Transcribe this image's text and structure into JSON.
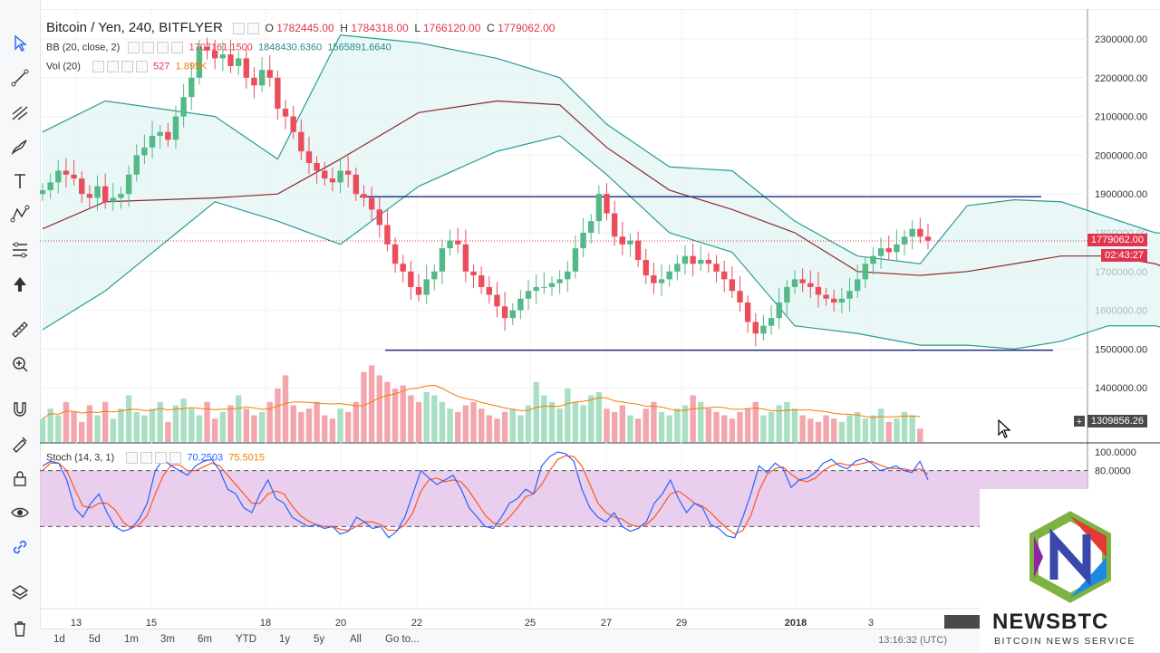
{
  "header": {
    "title": "Bitcoin / Yen, 240, BITFLYER",
    "ohlc": {
      "o_label": "O",
      "o": "1782445.00",
      "h_label": "H",
      "h": "1784318.00",
      "l_label": "L",
      "l": "1766120.00",
      "c_label": "C",
      "c": "1779062.00"
    },
    "bb_label": "BB (20, close, 2)",
    "bb_values": [
      "1707161.1500",
      "1848430.6360",
      "1565891.6640"
    ],
    "vol_label": "Vol (20)",
    "vol_values": [
      "527",
      "1.895K"
    ],
    "stoch_label": "Stoch (14, 3, 1)",
    "stoch_values": [
      "70.2503",
      "75.5015"
    ]
  },
  "price_tags": {
    "last": "1779062.00",
    "countdown": "02:43:27",
    "crosshair": "1309856.26"
  },
  "toolbar": {
    "icons": [
      "cursor-icon",
      "trendline-icon",
      "pitchfork-icon",
      "brush-icon",
      "text-icon",
      "pattern-icon",
      "fib-icon",
      "arrow-icon",
      "ruler-icon",
      "zoom-icon",
      "magnet-icon",
      "lock-icon",
      "hidden-lock-icon",
      "eye-icon",
      "link-icon",
      "layers-icon",
      "trash-icon"
    ]
  },
  "ranges": [
    "1d",
    "5d",
    "1m",
    "3m",
    "6m",
    "YTD",
    "1y",
    "5y",
    "All",
    "Go to..."
  ],
  "utc_time": "13:16:32 (UTC)",
  "logo": {
    "word": "NEWSBTC",
    "sub": "BITCOIN NEWS SERVICE"
  },
  "colors": {
    "up": "#53b987",
    "down": "#eb4d5c",
    "bb_band": "#2a9d8f",
    "bb_mid": "#8b2a2a",
    "hline": "#1a237e",
    "stoch_k": "#2962ff",
    "stoch_d": "#ff5722",
    "stoch_fill": "#e1bee7"
  },
  "chart_data": {
    "type": "candlestick",
    "title": "Bitcoin / Yen, 240, BITFLYER",
    "y_ticks": [
      "2300000.00",
      "2200000.00",
      "2100000.00",
      "2000000.00",
      "1900000.00",
      "1800000.00",
      "1700000.00",
      "1600000.00",
      "1500000.00",
      "1400000.00"
    ],
    "ylim": [
      1300000,
      2330000
    ],
    "x_ticks": [
      "13",
      "15",
      "18",
      "20",
      "22",
      "25",
      "27",
      "29",
      "2018",
      "3"
    ],
    "x_tick_label_partial": "2018-",
    "horizontal_lines": [
      1893000,
      1497000
    ],
    "bb_upper": [
      [
        0,
        2060000
      ],
      [
        8,
        2140000
      ],
      [
        22,
        2100000
      ],
      [
        30,
        1990000
      ],
      [
        38,
        2310000
      ],
      [
        48,
        2290000
      ],
      [
        58,
        2250000
      ],
      [
        66,
        2200000
      ],
      [
        72,
        2080000
      ],
      [
        80,
        1970000
      ],
      [
        88,
        1960000
      ],
      [
        96,
        1830000
      ],
      [
        104,
        1740000
      ],
      [
        112,
        1720000
      ],
      [
        118,
        1870000
      ],
      [
        124,
        1885000
      ],
      [
        130,
        1880000
      ],
      [
        136,
        1840000
      ],
      [
        142,
        1800000
      ],
      [
        150,
        1790000
      ],
      [
        158,
        1770000
      ],
      [
        166,
        1790000
      ],
      [
        172,
        1820000
      ],
      [
        180,
        1790000
      ],
      [
        186,
        1760000
      ],
      [
        192,
        1800000
      ],
      [
        196,
        1850000
      ]
    ],
    "bb_middle": [
      [
        0,
        1810000
      ],
      [
        8,
        1880000
      ],
      [
        22,
        1890000
      ],
      [
        30,
        1900000
      ],
      [
        38,
        1990000
      ],
      [
        48,
        2110000
      ],
      [
        58,
        2140000
      ],
      [
        66,
        2130000
      ],
      [
        72,
        2020000
      ],
      [
        80,
        1910000
      ],
      [
        88,
        1860000
      ],
      [
        96,
        1800000
      ],
      [
        104,
        1700000
      ],
      [
        112,
        1690000
      ],
      [
        118,
        1700000
      ],
      [
        124,
        1720000
      ],
      [
        130,
        1740000
      ],
      [
        136,
        1740000
      ],
      [
        142,
        1720000
      ],
      [
        150,
        1660000
      ],
      [
        158,
        1640000
      ],
      [
        166,
        1650000
      ],
      [
        172,
        1640000
      ],
      [
        180,
        1620000
      ],
      [
        186,
        1640000
      ],
      [
        192,
        1690000
      ],
      [
        196,
        1710000
      ]
    ],
    "bb_lower": [
      [
        0,
        1550000
      ],
      [
        8,
        1650000
      ],
      [
        22,
        1880000
      ],
      [
        30,
        1830000
      ],
      [
        38,
        1770000
      ],
      [
        48,
        1920000
      ],
      [
        58,
        2010000
      ],
      [
        66,
        2050000
      ],
      [
        72,
        1950000
      ],
      [
        80,
        1800000
      ],
      [
        88,
        1750000
      ],
      [
        96,
        1560000
      ],
      [
        104,
        1540000
      ],
      [
        112,
        1510000
      ],
      [
        118,
        1510000
      ],
      [
        124,
        1500000
      ],
      [
        130,
        1520000
      ],
      [
        136,
        1560000
      ],
      [
        142,
        1560000
      ],
      [
        150,
        1520000
      ],
      [
        158,
        1500000
      ],
      [
        166,
        1500000
      ],
      [
        172,
        1510000
      ],
      [
        180,
        1500000
      ],
      [
        186,
        1540000
      ],
      [
        192,
        1560000
      ],
      [
        196,
        1565000
      ]
    ],
    "candle_series": [
      1910000,
      1930000,
      1960000,
      1950000,
      1940000,
      1900000,
      1890000,
      1920000,
      1880000,
      1890000,
      1900000,
      1950000,
      2000000,
      2020000,
      2050000,
      2060000,
      2040000,
      2100000,
      2150000,
      2200000,
      2280000,
      2270000,
      2250000,
      2260000,
      2230000,
      2250000,
      2200000,
      2180000,
      2220000,
      2200000,
      2120000,
      2100000,
      2060000,
      2010000,
      1980000,
      1960000,
      1940000,
      1930000,
      1960000,
      1950000,
      1900000,
      1890000,
      1860000,
      1820000,
      1770000,
      1720000,
      1700000,
      1660000,
      1640000,
      1680000,
      1700000,
      1760000,
      1780000,
      1770000,
      1700000,
      1690000,
      1660000,
      1640000,
      1610000,
      1580000,
      1600000,
      1630000,
      1650000,
      1660000,
      1660000,
      1670000,
      1680000,
      1700000,
      1760000,
      1800000,
      1830000,
      1900000,
      1850000,
      1790000,
      1770000,
      1780000,
      1730000,
      1690000,
      1670000,
      1680000,
      1700000,
      1720000,
      1740000,
      1720000,
      1730000,
      1720000,
      1700000,
      1680000,
      1650000,
      1620000,
      1570000,
      1540000,
      1560000,
      1580000,
      1620000,
      1660000,
      1680000,
      1670000,
      1660000,
      1640000,
      1630000,
      1620000,
      1630000,
      1650000,
      1680000,
      1720000,
      1740000,
      1760000,
      1750000,
      1770000,
      1790000,
      1810000,
      1790000,
      1780000
    ],
    "volume_relative": [
      0.35,
      0.5,
      0.4,
      0.6,
      0.45,
      0.3,
      0.55,
      0.4,
      0.6,
      0.35,
      0.5,
      0.7,
      0.45,
      0.4,
      0.5,
      0.6,
      0.3,
      0.55,
      0.65,
      0.5,
      0.4,
      0.6,
      0.35,
      0.45,
      0.55,
      0.7,
      0.5,
      0.4,
      0.45,
      0.6,
      0.8,
      1.0,
      0.55,
      0.45,
      0.5,
      0.6,
      0.4,
      0.35,
      0.5,
      0.45,
      0.6,
      1.05,
      1.15,
      1.0,
      0.9,
      0.8,
      0.85,
      0.7,
      0.6,
      0.75,
      0.7,
      0.6,
      0.5,
      0.45,
      0.55,
      0.6,
      0.5,
      0.4,
      0.35,
      0.45,
      0.5,
      0.4,
      0.55,
      0.9,
      0.7,
      0.6,
      0.5,
      0.8,
      0.6,
      0.55,
      0.7,
      0.75,
      0.5,
      0.45,
      0.55,
      0.4,
      0.35,
      0.5,
      0.6,
      0.45,
      0.4,
      0.5,
      0.55,
      0.7,
      0.6,
      0.5,
      0.45,
      0.4,
      0.35,
      0.45,
      0.5,
      0.6,
      0.4,
      0.45,
      0.55,
      0.6,
      0.5,
      0.4,
      0.35,
      0.3,
      0.4,
      0.35,
      0.3,
      0.4,
      0.45,
      0.35,
      0.4,
      0.5,
      0.3,
      0.35,
      0.45,
      0.4,
      0.2
    ],
    "stoch_ylim": [
      0,
      100
    ],
    "stoch_ticks": [
      "100.0000",
      "80.0000"
    ],
    "stoch_bands": [
      80,
      20
    ],
    "stoch_k": [
      85,
      90,
      88,
      70,
      40,
      30,
      45,
      55,
      35,
      20,
      15,
      18,
      28,
      45,
      80,
      92,
      85,
      80,
      75,
      85,
      90,
      92,
      80,
      60,
      55,
      40,
      35,
      55,
      70,
      50,
      45,
      30,
      25,
      20,
      22,
      18,
      20,
      12,
      15,
      30,
      25,
      18,
      20,
      8,
      15,
      30,
      55,
      80,
      72,
      65,
      70,
      75,
      60,
      40,
      30,
      20,
      18,
      30,
      45,
      50,
      60,
      55,
      85,
      95,
      100,
      98,
      90,
      60,
      40,
      30,
      25,
      35,
      20,
      15,
      18,
      25,
      45,
      55,
      70,
      50,
      35,
      45,
      40,
      22,
      18,
      10,
      8,
      30,
      55,
      85,
      78,
      88,
      82,
      62,
      70,
      72,
      78,
      88,
      92,
      85,
      82,
      90,
      93,
      88,
      80,
      82,
      85,
      80,
      78,
      90,
      70
    ],
    "stoch_d": [
      80,
      88,
      88,
      80,
      60,
      42,
      40,
      45,
      45,
      38,
      25,
      18,
      22,
      32,
      55,
      75,
      86,
      86,
      80,
      80,
      84,
      88,
      85,
      75,
      65,
      55,
      45,
      45,
      55,
      58,
      55,
      42,
      32,
      26,
      22,
      20,
      20,
      17,
      16,
      20,
      25,
      25,
      22,
      16,
      16,
      22,
      35,
      58,
      70,
      72,
      68,
      70,
      68,
      58,
      45,
      32,
      24,
      22,
      30,
      40,
      52,
      55,
      65,
      80,
      92,
      96,
      95,
      85,
      65,
      45,
      35,
      30,
      28,
      22,
      20,
      22,
      30,
      42,
      55,
      58,
      52,
      45,
      42,
      35,
      26,
      18,
      12,
      16,
      32,
      58,
      76,
      82,
      84,
      76,
      70,
      68,
      72,
      80,
      85,
      88,
      86,
      86,
      88,
      90,
      86,
      83,
      82,
      82,
      80,
      82,
      76
    ]
  }
}
